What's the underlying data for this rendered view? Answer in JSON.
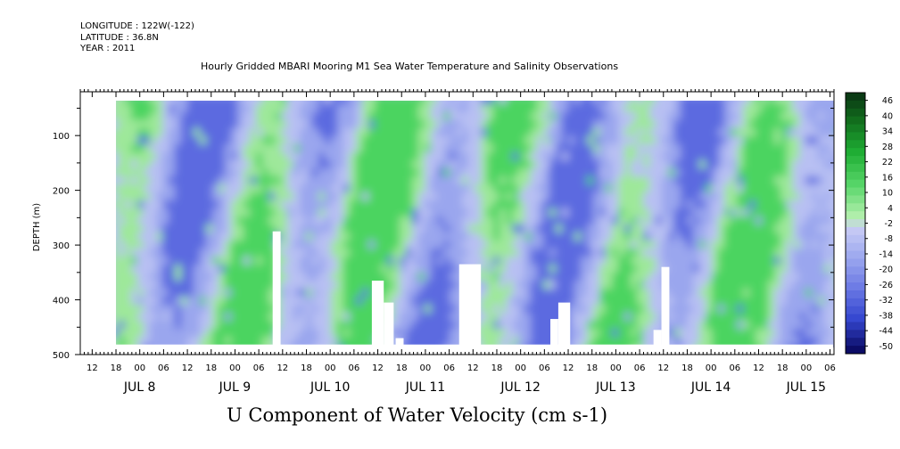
{
  "header": {
    "longitude": "LONGITUDE : 122W(-122)",
    "latitude": "LATITUDE : 36.8N",
    "year": "YEAR : 2011"
  },
  "chart_data": {
    "type": "heatmap",
    "title": "Hourly Gridded MBARI Mooring M1 Sea Water Temperature and Salinity Observations",
    "xlabel": "U Component of Water Velocity (cm s-1)",
    "ylabel": "DEPTH (m)",
    "y_axis": {
      "ticks": [
        100,
        200,
        300,
        400,
        500
      ],
      "range": [
        500,
        20
      ],
      "inverted": true
    },
    "x_axis": {
      "start_hour_labels": [
        "12",
        "18",
        "00",
        "06",
        "12",
        "18",
        "00",
        "06",
        "12",
        "18",
        "00",
        "06",
        "12",
        "18",
        "00",
        "06",
        "12",
        "18",
        "00",
        "06",
        "12",
        "18",
        "00",
        "06",
        "12",
        "18",
        "00",
        "06",
        "12",
        "18",
        "00",
        "06",
        "12",
        "18",
        "00",
        "06",
        "12",
        "18",
        "00",
        "06"
      ],
      "date_labels": [
        "JUL  8",
        "JUL  9",
        "JUL 10",
        "JUL 11",
        "JUL 12",
        "JUL 13",
        "JUL 14",
        "JUL 15"
      ],
      "range_hours_from_jul8_00": [
        -15,
        175
      ],
      "data_start_hour": -6
    },
    "colorbar": {
      "labels": [
        "46",
        "40",
        "34",
        "28",
        "22",
        "16",
        "10",
        "4",
        "-2",
        "-8",
        "-14",
        "-20",
        "-26",
        "-32",
        "-38",
        "-44",
        "-50"
      ],
      "min": -50,
      "max": 49
    },
    "colors": {
      "strong_negative": "#1a1a8a",
      "moderate_negative": "#5b6be0",
      "weak_negative": "#9aa6ee",
      "near_zero": "#b8c0f3",
      "weak_positive": "#9ee89a",
      "moderate_positive": "#4cd460",
      "strong_positive": "#0a5a1e",
      "missing": "#ffffff"
    },
    "missing_data_columns": [
      {
        "hour_start": 33.5,
        "hour_end": 35.5,
        "depth_top": 275
      },
      {
        "hour_start": 58.5,
        "hour_end": 61.5,
        "depth_top": 365
      },
      {
        "hour_start": 61.5,
        "hour_end": 64,
        "depth_top": 405
      },
      {
        "hour_start": 64.5,
        "hour_end": 66.5,
        "depth_top": 470
      },
      {
        "hour_start": 80.5,
        "hour_end": 86,
        "depth_top": 335
      },
      {
        "hour_start": 103.5,
        "hour_end": 105.5,
        "depth_top": 435
      },
      {
        "hour_start": 105.5,
        "hour_end": 108.5,
        "depth_top": 405
      },
      {
        "hour_start": 129.5,
        "hour_end": 131.5,
        "depth_top": 455
      },
      {
        "hour_start": 131.5,
        "hour_end": 133.5,
        "depth_top": 340
      }
    ]
  }
}
